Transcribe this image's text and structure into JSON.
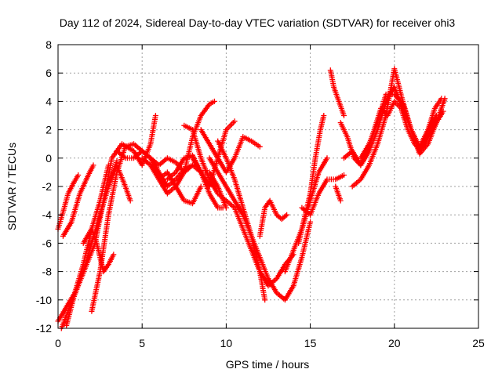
{
  "chart_data": {
    "type": "scatter",
    "title": "Day 112 of 2024, Sidereal Day-to-day VTEC variation (SDTVAR) for receiver ohi3",
    "xlabel": "GPS time / hours",
    "ylabel": "SDTVAR / TECUs",
    "xlim": [
      0,
      25
    ],
    "ylim": [
      -12,
      8
    ],
    "x_ticks": [
      0,
      5,
      10,
      15,
      20,
      25
    ],
    "y_ticks": [
      -12,
      -10,
      -8,
      -6,
      -4,
      -2,
      0,
      2,
      4,
      6,
      8
    ],
    "x_tick_labels": [
      "0",
      "5",
      "10",
      "15",
      "20",
      "25"
    ],
    "y_tick_labels": [
      "-12",
      "-10",
      "-8",
      "-6",
      "-4",
      "-2",
      "0",
      "2",
      "4",
      "6",
      "8"
    ],
    "grid": true,
    "marker": "+",
    "series_color": "#ff0000",
    "series": [
      {
        "x": [
          0.0,
          0.3,
          0.6,
          0.9,
          1.2
        ],
        "y": [
          -5.0,
          -3.8,
          -2.5,
          -1.8,
          -1.2
        ]
      },
      {
        "x": [
          0.3,
          0.8,
          1.3,
          1.8,
          2.1
        ],
        "y": [
          -5.5,
          -4.5,
          -2.5,
          -1.2,
          -0.5
        ]
      },
      {
        "x": [
          0.0,
          0.5,
          1.0,
          1.5,
          2.0,
          2.5,
          3.0,
          3.5
        ],
        "y": [
          -11.5,
          -10.5,
          -9.5,
          -8.0,
          -6.0,
          -4.0,
          -2.0,
          -0.2
        ]
      },
      {
        "x": [
          0.2,
          0.7,
          1.2,
          1.7,
          2.2,
          2.7,
          3.2,
          3.8,
          4.5,
          5.0,
          5.5,
          5.8
        ],
        "y": [
          -12.0,
          -10.5,
          -9.0,
          -7.5,
          -6.0,
          -3.0,
          0.0,
          1.0,
          0.5,
          -0.5,
          1.0,
          3.0
        ]
      },
      {
        "x": [
          0.5,
          1.0,
          1.5,
          2.0,
          2.5,
          3.0
        ],
        "y": [
          -11.8,
          -9.5,
          -7.5,
          -5.0,
          -3.0,
          -0.5
        ]
      },
      {
        "x": [
          1.5,
          2.0,
          2.3,
          2.7,
          3.0,
          3.3
        ],
        "y": [
          -6.0,
          -5.0,
          -6.0,
          -8.0,
          -7.5,
          -6.8
        ]
      },
      {
        "x": [
          2.0,
          2.5,
          3.0,
          3.5,
          4.0,
          4.5,
          5.0,
          5.5,
          6.0,
          6.5,
          7.0,
          7.5,
          8.0,
          8.5,
          9.0,
          9.3
        ],
        "y": [
          -10.8,
          -8.0,
          -4.0,
          -1.0,
          0.8,
          1.0,
          0.5,
          0.0,
          -0.5,
          0.0,
          -0.3,
          -1.0,
          1.5,
          3.0,
          3.8,
          4.0
        ]
      },
      {
        "x": [
          3.0,
          3.5,
          4.0,
          4.3
        ],
        "y": [
          -2.0,
          -0.5,
          -2.0,
          -3.0
        ]
      },
      {
        "x": [
          3.5,
          4.0,
          4.5,
          5.0,
          5.5,
          6.0,
          6.5,
          7.0,
          7.5,
          8.0
        ],
        "y": [
          0.5,
          0.0,
          0.0,
          0.5,
          0.0,
          -1.0,
          -2.0,
          -1.5,
          -0.8,
          -0.5
        ]
      },
      {
        "x": [
          5.0,
          5.5,
          6.0,
          6.5,
          7.0,
          7.5,
          8.0,
          8.5
        ],
        "y": [
          0.0,
          -0.5,
          -1.5,
          -1.0,
          -2.0,
          -3.0,
          -3.2,
          -2.0
        ]
      },
      {
        "x": [
          5.5,
          6.0,
          6.5,
          7.0,
          7.5,
          8.0,
          8.5,
          9.0,
          9.5,
          10.0
        ],
        "y": [
          -0.5,
          -1.5,
          -2.5,
          -2.0,
          -1.0,
          -0.5,
          -1.0,
          -1.0,
          -2.0,
          -3.5
        ]
      },
      {
        "x": [
          7.5,
          8.0,
          8.5,
          9.0,
          9.5,
          10.0,
          10.5,
          11.0,
          11.5,
          12.0,
          12.5,
          13.0,
          13.5,
          14.0
        ],
        "y": [
          2.3,
          2.0,
          0.0,
          -1.5,
          -2.5,
          -3.0,
          -3.5,
          -5.0,
          -6.5,
          -8.0,
          -9.0,
          -8.5,
          -7.5,
          -6.8
        ]
      },
      {
        "x": [
          6.5,
          7.0,
          7.5,
          8.0,
          8.5,
          9.0,
          9.5,
          10.0,
          10.5
        ],
        "y": [
          -1.5,
          -1.0,
          0.0,
          0.2,
          -1.0,
          -2.0,
          0.0,
          2.0,
          2.6
        ]
      },
      {
        "x": [
          8.0,
          8.5,
          9.0,
          9.5,
          9.8
        ],
        "y": [
          0.0,
          -1.0,
          -2.5,
          -3.5,
          -3.5
        ]
      },
      {
        "x": [
          8.5,
          9.0,
          9.5,
          10.0,
          10.5,
          11.0,
          11.5,
          12.0
        ],
        "y": [
          2.0,
          1.0,
          0.0,
          -1.0,
          0.0,
          1.5,
          1.2,
          0.8
        ]
      },
      {
        "x": [
          9.5,
          10.0,
          10.5,
          11.0,
          11.5,
          12.0,
          12.3
        ],
        "y": [
          1.2,
          0.0,
          -1.5,
          -3.5,
          -5.5,
          -8.0,
          -10.0
        ]
      },
      {
        "x": [
          9.0,
          9.5,
          10.0,
          10.5,
          11.0,
          11.5,
          12.0,
          12.5,
          13.0,
          13.5,
          14.0,
          14.5,
          15.0
        ],
        "y": [
          0.0,
          -1.0,
          -2.0,
          -3.0,
          -4.0,
          -5.5,
          -7.0,
          -8.5,
          -9.5,
          -10.0,
          -9.0,
          -7.0,
          -4.5
        ]
      },
      {
        "x": [
          12.0,
          12.3,
          12.6,
          13.0,
          13.3,
          13.6
        ],
        "y": [
          -5.5,
          -3.5,
          -3.0,
          -4.0,
          -4.3,
          -4.0
        ]
      },
      {
        "x": [
          13.5,
          14.0,
          14.5,
          15.0,
          15.5,
          16.0
        ],
        "y": [
          -8.0,
          -6.5,
          -5.0,
          -3.0,
          -1.0,
          0.0
        ]
      },
      {
        "x": [
          14.3,
          14.7,
          15.0,
          15.3,
          15.6,
          15.8
        ],
        "y": [
          -6.0,
          -4.0,
          -2.5,
          0.0,
          2.0,
          3.0
        ]
      },
      {
        "x": [
          14.5,
          15.0,
          15.5,
          16.0,
          16.5,
          17.0
        ],
        "y": [
          -3.5,
          -4.0,
          -2.5,
          -1.5,
          -1.5,
          -1.2
        ]
      },
      {
        "x": [
          16.2,
          16.4,
          16.7,
          17.0
        ],
        "y": [
          6.2,
          5.0,
          4.0,
          3.0
        ]
      },
      {
        "x": [
          16.5,
          16.8
        ],
        "y": [
          -2.0,
          -3.0
        ]
      },
      {
        "x": [
          16.8,
          17.2,
          17.6,
          18.0,
          18.4,
          18.8,
          19.2,
          19.6,
          20.0,
          20.4,
          20.8,
          21.2,
          21.6,
          22.0,
          22.4,
          22.8
        ],
        "y": [
          2.5,
          1.5,
          0.0,
          -0.5,
          0.5,
          2.0,
          3.5,
          3.0,
          4.0,
          3.5,
          2.0,
          1.0,
          0.5,
          2.0,
          3.5,
          4.2
        ]
      },
      {
        "x": [
          17.0,
          17.5,
          18.0,
          18.5,
          19.0,
          19.5,
          20.0,
          20.5,
          21.0,
          21.5,
          22.0,
          22.5,
          22.9
        ],
        "y": [
          0.0,
          0.5,
          -0.5,
          0.5,
          2.0,
          4.0,
          5.0,
          3.5,
          2.0,
          0.5,
          1.5,
          2.5,
          3.3
        ]
      },
      {
        "x": [
          17.5,
          18.0,
          18.5,
          19.0,
          19.5,
          20.0,
          20.5,
          21.0,
          21.5,
          22.0,
          22.5,
          23.0
        ],
        "y": [
          -2.0,
          -1.5,
          -0.5,
          1.0,
          3.0,
          6.3,
          4.0,
          2.0,
          0.3,
          1.0,
          2.5,
          4.2
        ]
      },
      {
        "x": [
          18.0,
          18.5,
          19.0,
          19.5,
          20.0,
          20.5,
          21.0,
          21.5,
          22.0,
          22.5
        ],
        "y": [
          0.0,
          1.0,
          2.5,
          4.5,
          4.5,
          3.8,
          2.0,
          0.8,
          2.0,
          3.0
        ]
      }
    ]
  }
}
